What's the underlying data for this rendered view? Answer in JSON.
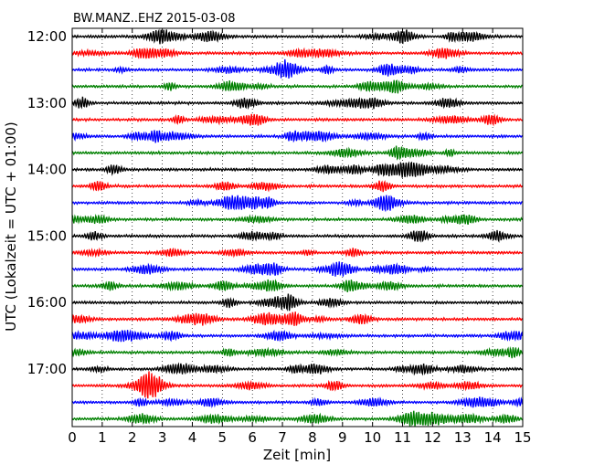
{
  "chart_data": {
    "type": "line",
    "title": "BW.MANZ..EHZ 2015-03-08",
    "xlabel": "Zeit  [min]",
    "ylabel": "UTC (Lokalzeit = UTC + 01:00)",
    "xlim": [
      0,
      15
    ],
    "x_ticks": [
      "0",
      "1",
      "2",
      "3",
      "4",
      "5",
      "6",
      "7",
      "8",
      "9",
      "10",
      "11",
      "12",
      "13",
      "14",
      "15"
    ],
    "y_tick_labels": [
      "12:00",
      "13:00",
      "14:00",
      "15:00",
      "16:00",
      "17:00"
    ],
    "trace_interval_min": 15,
    "start_time": "12:00",
    "end_time": "18:00",
    "trace_count": 24,
    "trace_colors": [
      "#000000",
      "#ff0000",
      "#0000ff",
      "#008000"
    ],
    "grid": "vertical dotted",
    "legend": "none"
  }
}
